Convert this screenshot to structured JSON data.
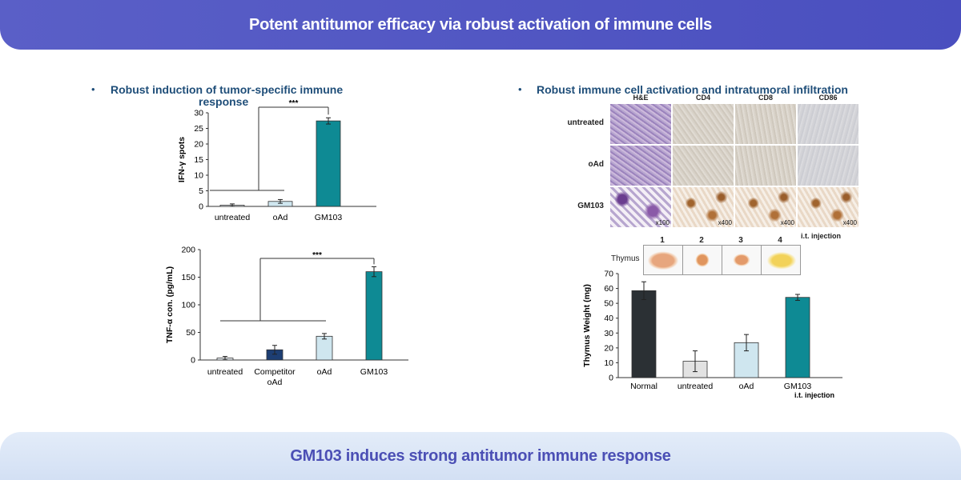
{
  "header": {
    "title": "Potent antitumor efficacy via robust activation of immune cells"
  },
  "footer": {
    "title": "GM103 induces strong antitumor immune response"
  },
  "left_section": {
    "bullet": "•",
    "title_line1": "Robust induction of tumor-specific immune",
    "title_line2": "response"
  },
  "right_section": {
    "bullet": "•",
    "title": "Robust immune cell activation and intratumoral infiltration"
  },
  "ihc": {
    "columns": [
      "H&E",
      "CD4",
      "CD8",
      "CD86"
    ],
    "rows": [
      "untreated",
      "oAd",
      "GM103"
    ],
    "magnifications": [
      "x100",
      "x400",
      "x400",
      "x400"
    ],
    "note": "i.t. injection"
  },
  "thymus_images": {
    "label": "Thymus",
    "numbers": [
      "1",
      "2",
      "3",
      "4"
    ]
  },
  "chart_data": [
    {
      "type": "bar",
      "ylabel": "IFN-γ spots",
      "categories": [
        "untreated",
        "oAd",
        "GM103"
      ],
      "values": [
        0.4,
        1.6,
        27.4
      ],
      "errors": [
        0.4,
        0.6,
        1.0
      ],
      "colors": [
        "#e8eef4",
        "#cfe6ef",
        "#0e8a94"
      ],
      "ylim": [
        0,
        30
      ],
      "yticks": [
        0,
        5,
        10,
        15,
        20,
        25,
        30
      ],
      "significance": "***"
    },
    {
      "type": "bar",
      "ylabel": "TNF-α con. (pg/mL)",
      "categories": [
        "untreated",
        "Competitor oAd",
        "oAd",
        "GM103"
      ],
      "values": [
        3.5,
        18.5,
        43,
        160
      ],
      "errors": [
        3,
        8,
        5,
        9
      ],
      "colors": [
        "#e8eef4",
        "#1d3e73",
        "#cfe6ef",
        "#0e8a94"
      ],
      "ylim": [
        0,
        200
      ],
      "yticks": [
        0,
        50,
        100,
        150,
        200
      ],
      "significance": "***"
    },
    {
      "type": "bar",
      "ylabel": "Thymus Weight (mg)",
      "categories": [
        "Normal",
        "untreated",
        "oAd",
        "GM103"
      ],
      "values": [
        58.5,
        11,
        23.5,
        54
      ],
      "errors": [
        6,
        7,
        5.5,
        2
      ],
      "colors": [
        "#2b3034",
        "#e2e2e2",
        "#cfe6ef",
        "#0e8a94"
      ],
      "ylim": [
        0,
        70
      ],
      "yticks": [
        0,
        10,
        20,
        30,
        40,
        50,
        60,
        70
      ],
      "note": "i.t. injection"
    }
  ]
}
